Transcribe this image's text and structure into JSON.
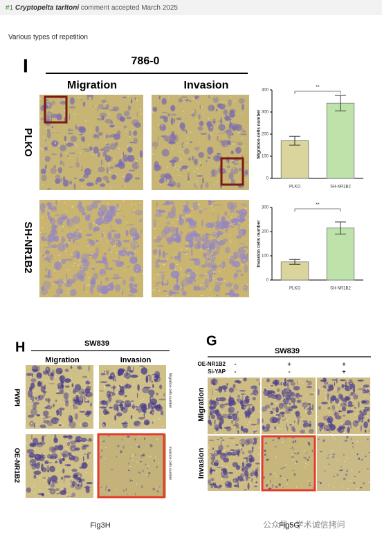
{
  "header": {
    "number": "#1",
    "species": "Cryptopelta tarltoni",
    "status": "comment accepted March 2025"
  },
  "note": "Various types of repetition",
  "figure_i": {
    "label": "I",
    "cell_line": "786-0",
    "columns": [
      "Migration",
      "Invasion"
    ],
    "rows": [
      "PLKO",
      "SH-NR1B2"
    ]
  },
  "figure_h": {
    "label": "H",
    "cell_line": "SW839",
    "columns": [
      "Migration",
      "Invasion"
    ],
    "rows": [
      "PWPI",
      "OE-NR1B2"
    ],
    "side_labels": [
      "Migration cells number",
      "Invasion cells number"
    ],
    "caption": "Fig3H"
  },
  "figure_g": {
    "label": "G",
    "cell_line": "SW839",
    "conditions": [
      {
        "name": "OE-NR1B2",
        "signs": [
          "-",
          "+",
          "+"
        ]
      },
      {
        "name": "Si-YAP",
        "signs": [
          "-",
          "-",
          "+"
        ]
      }
    ],
    "rows": [
      "Migration",
      "Invasion"
    ],
    "caption": "Fig5G"
  },
  "watermark": "公众号 · 学术诚信拷问",
  "chart_data": [
    {
      "type": "bar",
      "ylabel": "Migration cells number",
      "categories": [
        "PLKO",
        "SH-NR1B2"
      ],
      "values": [
        170,
        340
      ],
      "errors": [
        20,
        35
      ],
      "colors": [
        "#d9d59c",
        "#bde3aa"
      ],
      "ylim": [
        0,
        400
      ],
      "yticks": [
        0,
        100,
        200,
        300,
        400
      ],
      "significance": "**"
    },
    {
      "type": "bar",
      "ylabel": "Invasion cells number",
      "categories": [
        "PLKO",
        "SH-NR1B2"
      ],
      "values": [
        75,
        215
      ],
      "errors": [
        10,
        25
      ],
      "colors": [
        "#d9d59c",
        "#bde3aa"
      ],
      "ylim": [
        0,
        300
      ],
      "yticks": [
        0,
        100,
        200,
        300
      ],
      "significance": "**"
    }
  ]
}
